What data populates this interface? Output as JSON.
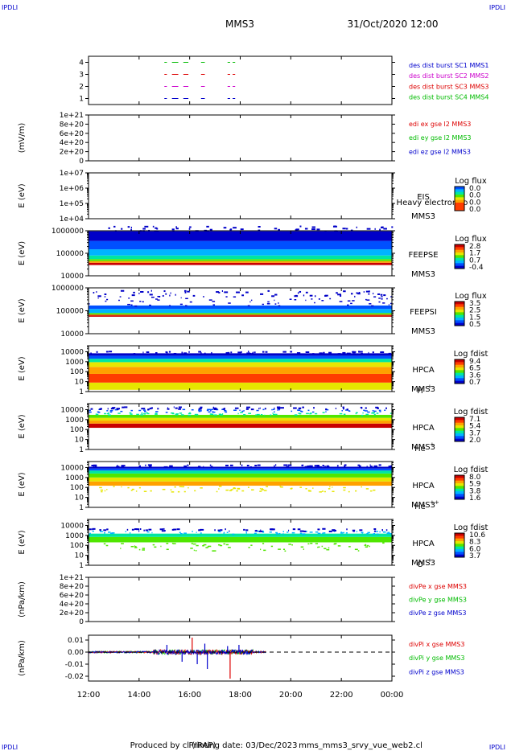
{
  "header": {
    "corner_tl": "IPDLI",
    "corner_tr": "IPDLI",
    "corner_bl": "IPDLI",
    "corner_br": "IPDLI",
    "mission": "MMS3",
    "datetime": "31/Oct/2020 12:00"
  },
  "footer": {
    "produced": "Produced by cl (IRAP)",
    "printing": "Printing date: 03/Dec/2023",
    "file": "mms_mms3_srvy_vue_web2.cl"
  },
  "x_axis": {
    "ticks": [
      "12:00",
      "14:00",
      "16:00",
      "18:00",
      "20:00",
      "22:00",
      "00:00"
    ],
    "tick_hours": [
      12,
      14,
      16,
      18,
      20,
      22,
      24
    ],
    "range_hours": [
      12,
      24
    ]
  },
  "colors": {
    "black": "#000000",
    "blue": "#0000cc",
    "red": "#dd0000",
    "green": "#00bb00",
    "magenta": "#cc00cc",
    "spectrum": [
      "#0000c8",
      "#0050ff",
      "#00b4ff",
      "#00e6a0",
      "#50e600",
      "#e6e600",
      "#ffa000",
      "#ff3c00",
      "#c80000"
    ]
  },
  "chart_data": [
    {
      "type": "line",
      "panel": "burst",
      "yticks": [
        "1",
        "2",
        "3",
        "4"
      ],
      "ylim": [
        0.5,
        4.5
      ],
      "legend": [
        {
          "text": "des dist burst SC1 MMS1",
          "color": "#0000cc"
        },
        {
          "text": "des dist burst SC2 MMS2",
          "color": "#cc00cc"
        },
        {
          "text": "des dist burst SC3 MMS3",
          "color": "#dd0000"
        },
        {
          "text": "des dist burst SC4 MMS4",
          "color": "#00bb00"
        }
      ],
      "series": [
        {
          "level": 1,
          "color": "#0000cc",
          "intervals": [
            [
              15.0,
              15.1
            ],
            [
              15.3,
              15.55
            ],
            [
              15.75,
              15.95
            ],
            [
              16.45,
              16.6
            ],
            [
              17.5,
              17.6
            ],
            [
              17.7,
              17.8
            ]
          ]
        },
        {
          "level": 2,
          "color": "#cc00cc",
          "intervals": [
            [
              15.0,
              15.1
            ],
            [
              15.3,
              15.55
            ],
            [
              15.75,
              15.95
            ],
            [
              16.45,
              16.6
            ],
            [
              17.5,
              17.6
            ],
            [
              17.7,
              17.8
            ]
          ]
        },
        {
          "level": 3,
          "color": "#dd0000",
          "intervals": [
            [
              15.0,
              15.1
            ],
            [
              15.3,
              15.55
            ],
            [
              15.75,
              15.95
            ],
            [
              16.45,
              16.6
            ],
            [
              17.5,
              17.6
            ],
            [
              17.7,
              17.8
            ]
          ]
        },
        {
          "level": 4,
          "color": "#00bb00",
          "intervals": [
            [
              15.0,
              15.1
            ],
            [
              15.3,
              15.55
            ],
            [
              15.75,
              15.95
            ],
            [
              16.45,
              16.6
            ],
            [
              17.5,
              17.6
            ],
            [
              17.7,
              17.8
            ]
          ]
        }
      ]
    },
    {
      "type": "line",
      "panel": "edi",
      "ylabel": "(mV/m)",
      "yticks": [
        "0",
        "2e+20",
        "4e+20",
        "6e+20",
        "8e+20",
        "1e+21"
      ],
      "ylim": [
        0,
        1e+21
      ],
      "zero_dashed": true,
      "legend": [
        {
          "text": "edi ex gse l2 MMS3",
          "color": "#dd0000"
        },
        {
          "text": "edi ey gse l2 MMS3",
          "color": "#00bb00"
        },
        {
          "text": "edi ez gse l2 MMS3",
          "color": "#0000cc"
        }
      ]
    },
    {
      "type": "heatmap",
      "panel": "eis",
      "ylabel": "E (eV)",
      "yticks": [
        "1e+04",
        "1e+05",
        "1e+06",
        "1e+07"
      ],
      "ylim": [
        10000,
        10000000
      ],
      "log_scale": true,
      "instrument": "EIS",
      "instrument2": "MMS3",
      "overlay": "Heavy electron to",
      "cbar_title": "Log flux",
      "cbar_ticks": [
        "0.0",
        "0.0",
        "0.0",
        "0.0"
      ]
    },
    {
      "type": "heatmap",
      "panel": "feepse",
      "ylabel": "E (eV)",
      "yticks": [
        "10000",
        "100000",
        "1000000"
      ],
      "ylim": [
        10000,
        1000000
      ],
      "log_scale": true,
      "instrument": "FEEPSE",
      "instrument2": "MMS3",
      "cbar_title": "Log flux",
      "cbar_ticks": [
        "2.8",
        "1.7",
        "0.7",
        "-0.4"
      ],
      "bands": [
        {
          "elo": 30000,
          "ehi": 38000,
          "level": 8
        },
        {
          "elo": 38000,
          "ehi": 45000,
          "level": 6
        },
        {
          "elo": 45000,
          "ehi": 55000,
          "level": 4
        },
        {
          "elo": 55000,
          "ehi": 80000,
          "level": 3
        },
        {
          "elo": 80000,
          "ehi": 150000,
          "level": 2
        },
        {
          "elo": 150000,
          "ehi": 350000,
          "level": 1
        },
        {
          "elo": 350000,
          "ehi": 950000,
          "level": 0
        }
      ],
      "hour_range": [
        12,
        24
      ]
    },
    {
      "type": "heatmap",
      "panel": "feepsi",
      "ylabel": "E (eV)",
      "yticks": [
        "10000",
        "100000",
        "1000000"
      ],
      "ylim": [
        10000,
        1000000
      ],
      "log_scale": true,
      "instrument": "FEEPSI",
      "instrument2": "MMS3",
      "cbar_title": "Log flux",
      "cbar_ticks": [
        "3.5",
        "2.5",
        "1.5",
        "0.5"
      ],
      "bands": [
        {
          "elo": 55000,
          "ehi": 62000,
          "level": 8
        },
        {
          "elo": 62000,
          "ehi": 68000,
          "level": 7
        },
        {
          "elo": 68000,
          "ehi": 80000,
          "level": 4
        },
        {
          "elo": 80000,
          "ehi": 120000,
          "level": 2
        },
        {
          "elo": 120000,
          "ehi": 170000,
          "level": 1
        },
        {
          "elo": 170000,
          "ehi": 450000,
          "level": 0,
          "sparse": true
        }
      ],
      "hour_range": [
        12,
        24
      ]
    },
    {
      "type": "heatmap",
      "panel": "hpca_h",
      "ylabel": "E (eV)",
      "yticks": [
        "1",
        "10",
        "100",
        "1000",
        "10000"
      ],
      "ylim": [
        1,
        40000
      ],
      "log_scale": true,
      "instrument": "HPCA",
      "instrument2": "MMS3",
      "species": "H",
      "species_sup": "+",
      "cbar_title": "Log fdist",
      "cbar_ticks": [
        "9.4",
        "6.5",
        "3.6",
        "0.7"
      ],
      "bands": [
        {
          "elo": 1.5,
          "ehi": 8,
          "level": 5
        },
        {
          "elo": 8,
          "ehi": 60,
          "level": 7
        },
        {
          "elo": 60,
          "ehi": 300,
          "level": 6
        },
        {
          "elo": 300,
          "ehi": 900,
          "level": 5
        },
        {
          "elo": 900,
          "ehi": 2000,
          "level": 3
        },
        {
          "elo": 2000,
          "ehi": 4000,
          "level": 1
        },
        {
          "elo": 4000,
          "ehi": 7000,
          "level": 0
        }
      ],
      "hour_range": [
        12,
        24
      ]
    },
    {
      "type": "heatmap",
      "panel": "hpca_he",
      "ylabel": "E (eV)",
      "yticks": [
        "1",
        "10",
        "100",
        "1000",
        "10000"
      ],
      "ylim": [
        1,
        40000
      ],
      "log_scale": true,
      "instrument": "HPCA",
      "instrument2": "MMS3",
      "species": "He",
      "species_sup": "+",
      "cbar_title": "Log fdist",
      "cbar_ticks": [
        "7.1",
        "5.4",
        "3.7",
        "2.0"
      ],
      "bands": [
        {
          "elo": 150,
          "ehi": 400,
          "level": 8
        },
        {
          "elo": 400,
          "ehi": 800,
          "level": 6
        },
        {
          "elo": 800,
          "ehi": 1500,
          "level": 5
        },
        {
          "elo": 1500,
          "ehi": 3000,
          "level": 4
        },
        {
          "elo": 3000,
          "ehi": 6000,
          "level": 3,
          "sparse": true
        },
        {
          "elo": 6000,
          "ehi": 12000,
          "level": 1,
          "sparse": true
        }
      ],
      "hour_range": [
        12,
        24
      ]
    },
    {
      "type": "heatmap",
      "panel": "hpca_hepp",
      "ylabel": "E (eV)",
      "yticks": [
        "1",
        "10",
        "100",
        "1000",
        "10000"
      ],
      "ylim": [
        1,
        40000
      ],
      "log_scale": true,
      "instrument": "HPCA",
      "instrument2": "MMS3",
      "species": "He",
      "species_sup": "++",
      "cbar_title": "Log fdist",
      "cbar_ticks": [
        "8.0",
        "5.9",
        "3.8",
        "1.6"
      ],
      "bands": [
        {
          "elo": 40,
          "ehi": 150,
          "level": 5,
          "sparse": true
        },
        {
          "elo": 150,
          "ehi": 400,
          "level": 6
        },
        {
          "elo": 400,
          "ehi": 1000,
          "level": 5
        },
        {
          "elo": 1000,
          "ehi": 2500,
          "level": 4
        },
        {
          "elo": 2500,
          "ehi": 5000,
          "level": 3
        },
        {
          "elo": 5000,
          "ehi": 8000,
          "level": 1
        },
        {
          "elo": 8000,
          "ehi": 12000,
          "level": 0
        }
      ],
      "hour_range": [
        12,
        24
      ]
    },
    {
      "type": "heatmap",
      "panel": "hpca_o",
      "ylabel": "E (eV)",
      "yticks": [
        "1",
        "10",
        "100",
        "1000",
        "10000"
      ],
      "ylim": [
        1,
        40000
      ],
      "log_scale": true,
      "instrument": "HPCA",
      "instrument2": "MMS3",
      "species": "O",
      "species_sup": "+",
      "cbar_title": "Log fdist",
      "cbar_ticks": [
        "10.6",
        "8.3",
        "6.0",
        "3.7"
      ],
      "bands": [
        {
          "elo": 30,
          "ehi": 200,
          "level": 4,
          "sparse": true
        },
        {
          "elo": 200,
          "ehi": 700,
          "level": 4
        },
        {
          "elo": 700,
          "ehi": 1500,
          "level": 3
        },
        {
          "elo": 1500,
          "ehi": 3000,
          "level": 2,
          "sparse": true
        }
      ],
      "hour_range": [
        12,
        24
      ]
    },
    {
      "type": "line",
      "panel": "divpe",
      "ylabel": "(nPa/km)",
      "yticks": [
        "0",
        "2e+20",
        "4e+20",
        "6e+20",
        "8e+20",
        "1e+21"
      ],
      "ylim": [
        0,
        1e+21
      ],
      "zero_dashed": true,
      "legend": [
        {
          "text": "divPe x gse MMS3",
          "color": "#dd0000"
        },
        {
          "text": "divPe y gse MMS3",
          "color": "#00bb00"
        },
        {
          "text": "divPe z gse MMS3",
          "color": "#0000cc"
        }
      ]
    },
    {
      "type": "line",
      "panel": "divpi",
      "ylabel": "(nPa/km)",
      "yticks": [
        "-0.02",
        "-0.01",
        "0.00",
        "0.01"
      ],
      "ylim": [
        -0.024,
        0.014
      ],
      "zero_dashed": true,
      "data_hour_range": [
        12,
        19.0
      ],
      "legend": [
        {
          "text": "divPi x gse MMS3",
          "color": "#dd0000"
        },
        {
          "text": "divPi y gse MMS3",
          "color": "#00bb00"
        },
        {
          "text": "divPi z gse MMS3",
          "color": "#0000cc"
        }
      ],
      "spikes": [
        {
          "hour": 15.1,
          "value": 0.006,
          "color": "#0000cc"
        },
        {
          "hour": 15.7,
          "value": -0.008,
          "color": "#0000cc"
        },
        {
          "hour": 16.1,
          "value": 0.012,
          "color": "#dd0000"
        },
        {
          "hour": 16.3,
          "value": -0.01,
          "color": "#0000cc"
        },
        {
          "hour": 16.6,
          "value": 0.007,
          "color": "#0000cc"
        },
        {
          "hour": 16.7,
          "value": -0.014,
          "color": "#0000cc"
        },
        {
          "hour": 17.5,
          "value": 0.005,
          "color": "#0000cc"
        },
        {
          "hour": 17.6,
          "value": -0.022,
          "color": "#dd0000"
        },
        {
          "hour": 17.95,
          "value": 0.006,
          "color": "#0000cc"
        }
      ]
    }
  ]
}
